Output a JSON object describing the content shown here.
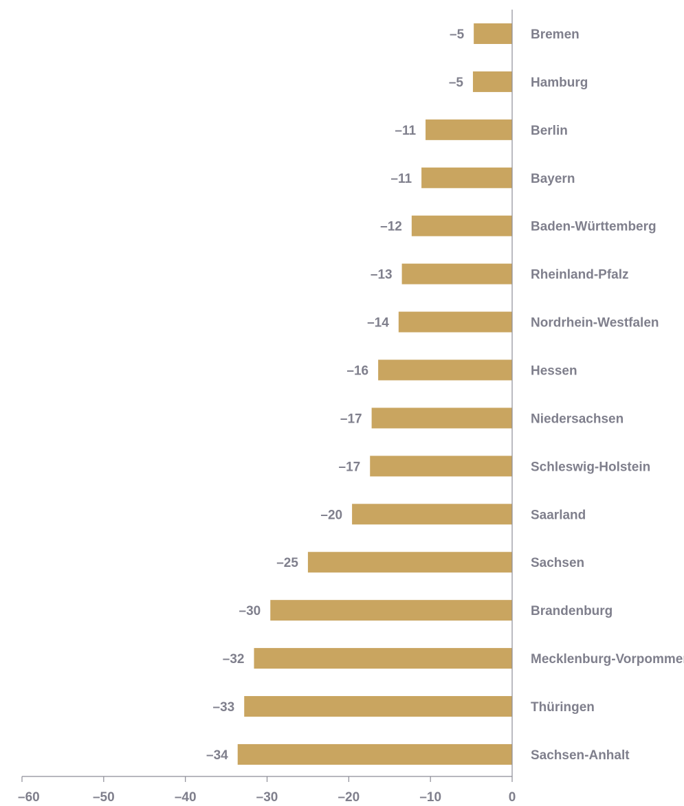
{
  "chart_data": {
    "type": "bar",
    "orientation": "horizontal",
    "title": "",
    "xlabel": "",
    "ylabel": "",
    "categories": [
      "Bremen",
      "Hamburg",
      "Berlin",
      "Bayern",
      "Baden-Württemberg",
      "Rheinland-Pfalz",
      "Nordrhein-Westfalen",
      "Hessen",
      "Niedersachsen",
      "Schleswig-Holstein",
      "Saarland",
      "Sachsen",
      "Brandenburg",
      "Mecklenburg-Vorpommern",
      "Thüringen",
      "Sachsen-Anhalt"
    ],
    "values": [
      -4.7,
      -4.8,
      -10.6,
      -11.1,
      -12.3,
      -13.5,
      -13.9,
      -16.4,
      -17.2,
      -17.4,
      -19.6,
      -25,
      -29.6,
      -31.6,
      -32.8,
      -33.6
    ],
    "value_labels": [
      "–5",
      "–5",
      "–11",
      "–11",
      "–12",
      "–13",
      "–14",
      "–16",
      "–17",
      "–17",
      "–20",
      "–25",
      "–30",
      "–32",
      "–33",
      "–34"
    ],
    "xlim": [
      -60,
      0
    ],
    "xticks": [
      -60,
      -50,
      -40,
      -30,
      -20,
      -10,
      0
    ],
    "xtick_labels": [
      "–60",
      "–50",
      "–40",
      "–30",
      "–20",
      "–10",
      "0"
    ],
    "grid": false,
    "legend": "none",
    "colors": {
      "bar": "#c9a560",
      "text": "#7f7f8c",
      "axis": "#8c8c96"
    }
  }
}
